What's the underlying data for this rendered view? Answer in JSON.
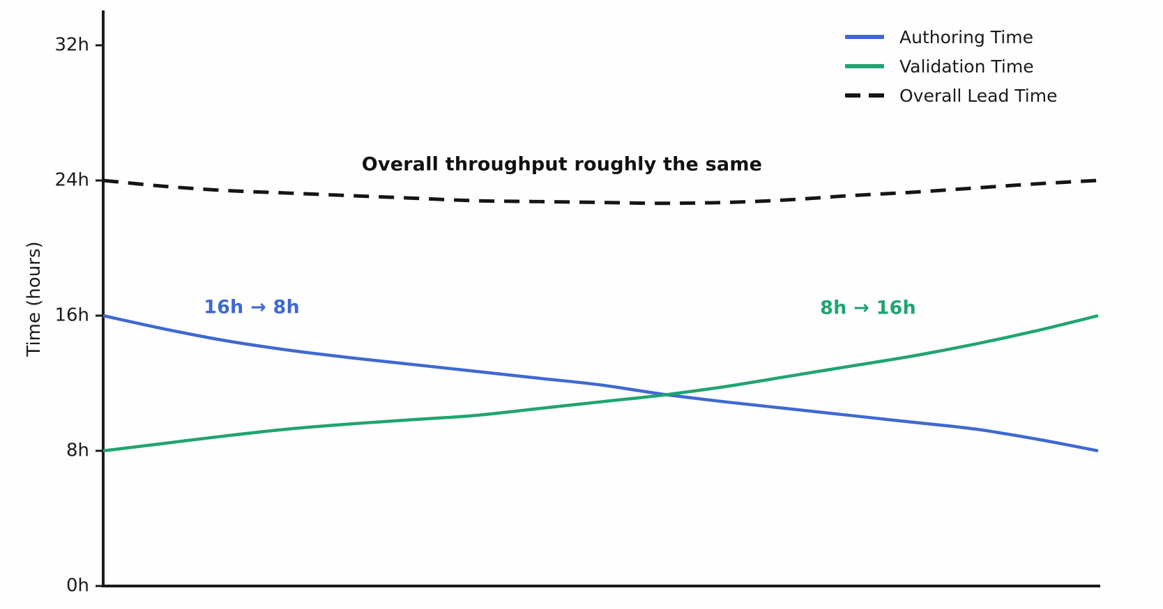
{
  "chart_data": {
    "type": "line",
    "title": "",
    "xlabel": "",
    "ylabel": "Time (hours)",
    "ylim": [
      0,
      34
    ],
    "x_range": [
      0,
      1
    ],
    "grid": false,
    "legend_position": "upper right",
    "yticks": [
      {
        "label": "0h",
        "value": 0
      },
      {
        "label": "8h",
        "value": 8
      },
      {
        "label": "16h",
        "value": 16
      },
      {
        "label": "24h",
        "value": 24
      },
      {
        "label": "32h",
        "value": 32
      }
    ],
    "t": [
      0,
      0.0625,
      0.125,
      0.1875,
      0.25,
      0.3125,
      0.375,
      0.4375,
      0.5,
      0.5625,
      0.625,
      0.6875,
      0.75,
      0.8125,
      0.875,
      0.9375,
      1
    ],
    "series": [
      {
        "name": "Authoring Time",
        "color": "#3E69D0",
        "style": "solid",
        "start_value_h": 16,
        "end_value_h": 8,
        "values": [
          16,
          15.2,
          14.5,
          13.95,
          13.5,
          13.1,
          12.7,
          12.3,
          11.9,
          11.35,
          10.9,
          10.5,
          10.1,
          9.7,
          9.3,
          8.7,
          8
        ]
      },
      {
        "name": "Validation Time",
        "color": "#20A470",
        "style": "solid",
        "start_value_h": 8,
        "end_value_h": 16,
        "values": [
          8,
          8.45,
          8.9,
          9.3,
          9.6,
          9.85,
          10.1,
          10.5,
          10.9,
          11.3,
          11.8,
          12.4,
          13.0,
          13.6,
          14.3,
          15.1,
          16
        ]
      },
      {
        "name": "Overall Lead Time",
        "color": "#151515",
        "style": "dashed",
        "start_value_h": 24,
        "end_value_h": 24,
        "values": [
          24,
          23.65,
          23.4,
          23.25,
          23.1,
          22.95,
          22.8,
          22.75,
          22.7,
          22.65,
          22.7,
          22.85,
          23.1,
          23.3,
          23.55,
          23.8,
          24
        ]
      }
    ],
    "annotations": [
      {
        "id": "center-note",
        "text": "Overall throughput roughly the same",
        "color": "#111111"
      },
      {
        "id": "blue-note",
        "text": "16h → 8h",
        "color": "#3E69D0"
      },
      {
        "id": "green-note",
        "text": "8h → 16h",
        "color": "#20A470"
      }
    ],
    "axis_color": "#1a1a1a"
  }
}
